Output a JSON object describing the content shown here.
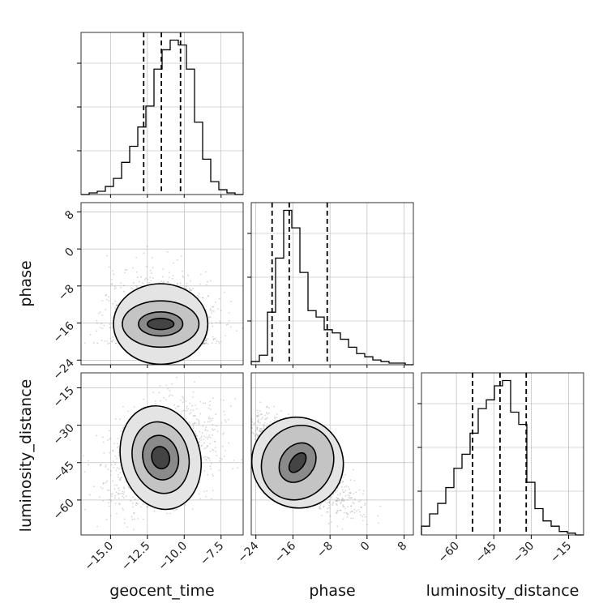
{
  "chart_data": {
    "type": "corner",
    "parameters": [
      "geocent_time",
      "phase",
      "luminosity_distance"
    ],
    "grid": true,
    "ranges": {
      "geocent_time": [
        -17.0,
        -6.0
      ],
      "phase": [
        -25.0,
        10.0
      ],
      "luminosity_distance": [
        -74.0,
        -9.0
      ]
    },
    "ticks": {
      "geocent_time": {
        "values": [
          -15.0,
          -12.5,
          -10.0,
          -7.5
        ],
        "labels": [
          "−15.0",
          "−12.5",
          "−10.0",
          "−7.5"
        ]
      },
      "phase": {
        "values": [
          -24,
          -16,
          -8,
          0,
          8
        ],
        "labels": [
          "−24",
          "−16",
          "−8",
          "0",
          "8"
        ]
      },
      "luminosity_distance": {
        "values": [
          -60,
          -45,
          -30,
          -15
        ],
        "labels": [
          "−60",
          "−45",
          "−30",
          "−15"
        ]
      }
    },
    "histograms": [
      {
        "parameter": "geocent_time",
        "edges": [
          -17.0,
          -16.45,
          -15.9,
          -15.35,
          -14.8,
          -14.25,
          -13.7,
          -13.15,
          -12.6,
          -12.05,
          -11.5,
          -10.95,
          -10.4,
          -9.85,
          -9.3,
          -8.75,
          -8.2,
          -7.65,
          -7.1,
          -6.55,
          -6.0
        ],
        "counts": [
          0,
          0.01,
          0.02,
          0.05,
          0.1,
          0.2,
          0.3,
          0.42,
          0.55,
          0.78,
          0.9,
          0.96,
          0.93,
          0.78,
          0.45,
          0.22,
          0.08,
          0.03,
          0.01,
          0
        ],
        "quantiles": [
          -12.75,
          -11.55,
          -10.25
        ]
      },
      {
        "parameter": "phase",
        "edges": [
          -25.0,
          -23.25,
          -21.5,
          -19.75,
          -18.0,
          -16.25,
          -14.5,
          -12.75,
          -11.0,
          -9.25,
          -7.5,
          -5.75,
          -4.0,
          -2.25,
          -0.5,
          1.25,
          3.0,
          4.75,
          6.5,
          8.25,
          10.0
        ],
        "counts": [
          0.02,
          0.06,
          0.33,
          0.67,
          0.97,
          0.86,
          0.58,
          0.34,
          0.3,
          0.22,
          0.2,
          0.16,
          0.11,
          0.07,
          0.05,
          0.03,
          0.02,
          0.01,
          0.01,
          0
        ],
        "quantiles": [
          -20.5,
          -16.8,
          -8.6
        ]
      },
      {
        "parameter": "luminosity_distance",
        "edges": [
          -74.0,
          -70.75,
          -67.5,
          -64.25,
          -61.0,
          -57.75,
          -54.5,
          -51.25,
          -48.0,
          -44.75,
          -41.5,
          -38.25,
          -35.0,
          -31.75,
          -28.5,
          -25.25,
          -22.0,
          -18.75,
          -15.5,
          -12.25,
          -9.0
        ],
        "counts": [
          0.05,
          0.12,
          0.18,
          0.27,
          0.38,
          0.46,
          0.58,
          0.72,
          0.77,
          0.85,
          0.88,
          0.7,
          0.63,
          0.3,
          0.15,
          0.08,
          0.05,
          0.02,
          0.01,
          0
        ],
        "quantiles": [
          -53.5,
          -42.5,
          -32.0
        ]
      }
    ],
    "joint": [
      {
        "x": "geocent_time",
        "y": "phase",
        "mean": [
          -11.6,
          -16.2
        ],
        "sd": [
          1.6,
          4.6
        ],
        "corr": 0.0,
        "ymin": -20.5,
        "contours": [
          {
            "level": 0.5,
            "sx": 0.9,
            "sy": 1.2
          },
          {
            "level": 1.0,
            "sx": 1.5,
            "sy": 2.6
          },
          {
            "level": 2.0,
            "sx": 2.6,
            "sy": 5.0
          },
          {
            "level": 3.0,
            "sx": 3.2,
            "sy": 8.7
          }
        ]
      },
      {
        "x": "geocent_time",
        "y": "luminosity_distance",
        "mean": [
          -11.6,
          -43.0
        ],
        "sd": [
          1.7,
          10.0
        ],
        "corr": 0.3,
        "contours": [
          {
            "level": 0.5,
            "sx": 0.6,
            "sy": 4.5
          },
          {
            "level": 1.0,
            "sx": 1.2,
            "sy": 9.0
          },
          {
            "level": 2.0,
            "sx": 1.9,
            "sy": 14.5
          },
          {
            "level": 3.0,
            "sx": 2.7,
            "sy": 21.0
          }
        ]
      },
      {
        "x": "phase",
        "y": "luminosity_distance",
        "mean": [
          -15.0,
          -45.0
        ],
        "sd": [
          5.5,
          9.0
        ],
        "corr": -0.82,
        "contours": [
          {
            "level": 0.5,
            "sx": 1.4,
            "sy": 4.5
          },
          {
            "level": 1.0,
            "sx": 3.6,
            "sy": 8.5
          },
          {
            "level": 2.0,
            "sx": 7.5,
            "sy": 15.5
          },
          {
            "level": 3.0,
            "sx": 10.0,
            "sy": 18.0
          }
        ]
      }
    ]
  }
}
